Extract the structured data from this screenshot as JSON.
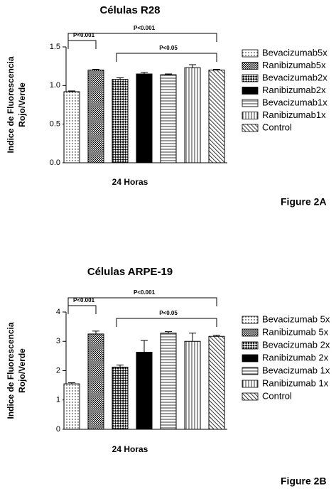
{
  "chart_data": [
    {
      "type": "bar",
      "title": "Células R28",
      "xlabel": "24 Horas",
      "ylabel": [
        "Indice de Fluorescencia",
        "Rojo/Verde"
      ],
      "figure_label": "Figure 2A",
      "categories": [
        "Bevacizumab5x",
        "Ranibizumab5x",
        "Bevacizumab2x",
        "Ranibizumab2x",
        "Bevacizumab1x",
        "Ranibizumab1x",
        "Control"
      ],
      "values": [
        0.92,
        1.2,
        1.08,
        1.15,
        1.14,
        1.23,
        1.2
      ],
      "errors": [
        0.01,
        0.01,
        0.02,
        0.02,
        0.01,
        0.04,
        0.01
      ],
      "patterns": [
        "dots",
        "fine-check",
        "coarse-check",
        "solid",
        "hlines",
        "vlines",
        "diag"
      ],
      "ylim": [
        0,
        1.5
      ],
      "yticks": [
        {
          "value": 0,
          "label": "0.0"
        },
        0.5,
        {
          "value": 1,
          "label": "1.0"
        },
        1.5
      ],
      "annotations": [
        {
          "text": "P<0.001",
          "from": 0,
          "to": 1
        },
        {
          "text": "P<0.001",
          "from": 0,
          "to": 6
        },
        {
          "text": "P<0.05",
          "from": 2,
          "to": 6
        }
      ]
    },
    {
      "type": "bar",
      "title": "Células ARPE-19",
      "xlabel": "24 Horas",
      "ylabel": [
        "Indice de Fluorescencia",
        "Rojo/Verde"
      ],
      "figure_label": "Figure 2B",
      "categories": [
        "Bevacizumab 5x",
        "Ranibizumab 5x",
        "Bevacizumab 2x",
        "Ranibizumab 2x",
        "Bevacizumab 1x",
        "Ranibizumab 1x",
        "Control"
      ],
      "values": [
        1.55,
        3.25,
        2.12,
        2.63,
        3.28,
        3.0,
        3.17
      ],
      "errors": [
        0.04,
        0.1,
        0.07,
        0.4,
        0.05,
        0.28,
        0.04
      ],
      "patterns": [
        "dots",
        "fine-check",
        "coarse-check",
        "solid",
        "hlines",
        "vlines",
        "diag"
      ],
      "ylim": [
        0,
        4
      ],
      "yticks": [
        0,
        1,
        2,
        3,
        4
      ],
      "annotations": [
        {
          "text": "P<0.001",
          "from": 0,
          "to": 1
        },
        {
          "text": "P<0.001",
          "from": 0,
          "to": 6
        },
        {
          "text": "P<0.05",
          "from": 2,
          "to": 6
        }
      ]
    }
  ]
}
